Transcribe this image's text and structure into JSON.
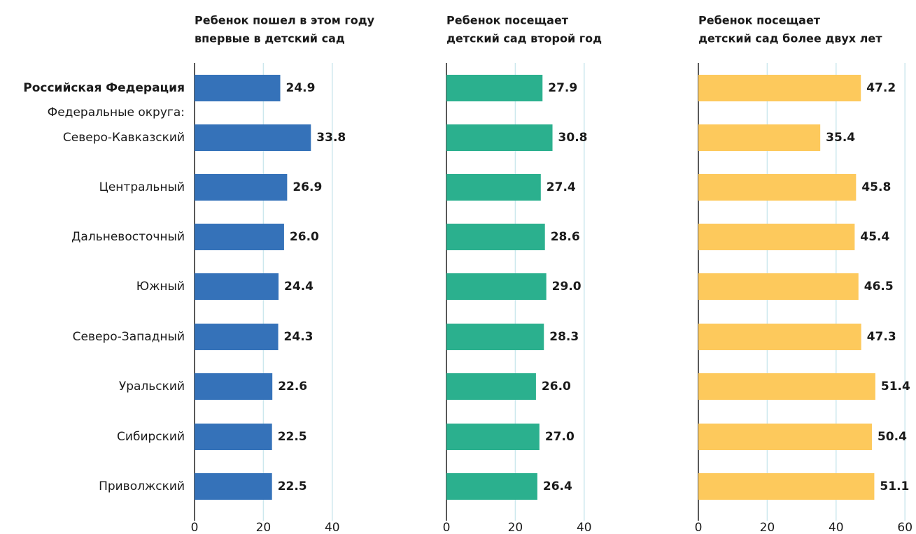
{
  "categories": [
    "Российская Федерация",
    "Северо-Кавказский",
    "Центральный",
    "Дальневосточный",
    "Южный",
    "Северо-Западный",
    "Уральский",
    "Сибирский",
    "Приволжский"
  ],
  "group_label": "Федеральные округа:",
  "chart_data": [
    {
      "type": "bar",
      "title": [
        "Ребенок пошел в этом году",
        "впервые в детский сад"
      ],
      "color": "#3572b9",
      "values": [
        24.9,
        33.8,
        26.9,
        26.0,
        24.4,
        24.3,
        22.6,
        22.5,
        22.5
      ],
      "value_labels": [
        "24.9",
        "33.8",
        "26.9",
        "26.0",
        "24.4",
        "24.3",
        "22.6",
        "22.5",
        "22.5"
      ],
      "xlim": [
        0,
        40
      ],
      "xticks": [
        0,
        20,
        40
      ],
      "grid": true
    },
    {
      "type": "bar",
      "title": [
        "Ребенок посещает",
        "детский сад второй год"
      ],
      "color": "#2bb08e",
      "values": [
        27.9,
        30.8,
        27.4,
        28.6,
        29.0,
        28.3,
        26.0,
        27.0,
        26.4
      ],
      "value_labels": [
        "27.9",
        "30.8",
        "27.4",
        "28.6",
        "29.0",
        "28.3",
        "26.0",
        "27.0",
        "26.4"
      ],
      "xlim": [
        0,
        40
      ],
      "xticks": [
        0,
        20,
        40
      ],
      "grid": true
    },
    {
      "type": "bar",
      "title": [
        "Ребенок посещает",
        "детский сад более двух лет"
      ],
      "color": "#fdc95c",
      "values": [
        47.2,
        35.4,
        45.8,
        45.4,
        46.5,
        47.3,
        51.4,
        50.4,
        51.1
      ],
      "value_labels": [
        "47.2",
        "35.4",
        "45.8",
        "45.4",
        "46.5",
        "47.3",
        "51.4",
        "50.4",
        "51.1"
      ],
      "xlim": [
        0,
        60
      ],
      "xticks": [
        0,
        20,
        40,
        60
      ],
      "grid": true
    }
  ]
}
